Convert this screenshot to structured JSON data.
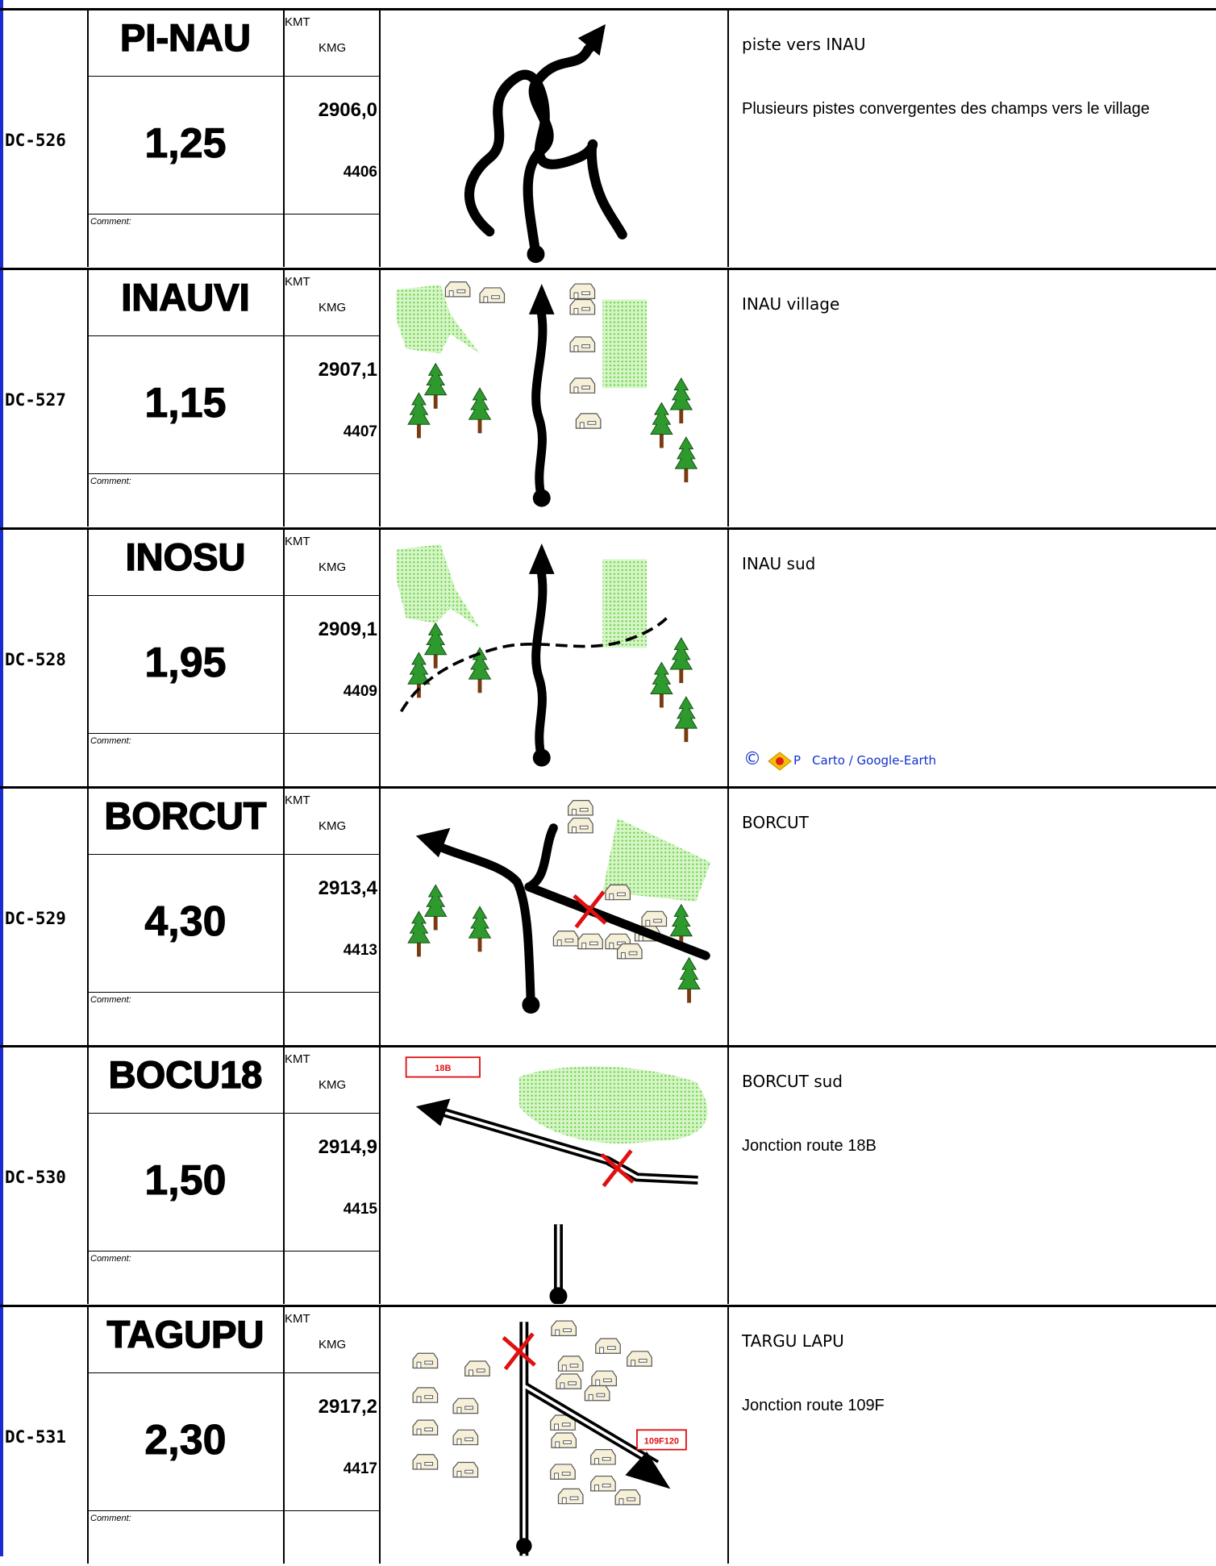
{
  "columns": {
    "kmt": "KMT",
    "kmg": "KMG",
    "comment": "Comment:"
  },
  "rows": [
    {
      "id": "DC-526",
      "name": "PI-NAU",
      "distance": "1,25",
      "kmt": "2906,0",
      "kmg": "4406",
      "notes": [
        "piste vers INAU",
        "Plusieurs pistes convergentes des champs vers le village"
      ]
    },
    {
      "id": "DC-527",
      "name": "INAUVI",
      "distance": "1,15",
      "kmt": "2907,1",
      "kmg": "4407",
      "notes": [
        "INAU village"
      ]
    },
    {
      "id": "DC-528",
      "name": "INOSU",
      "distance": "1,95",
      "kmt": "2909,1",
      "kmg": "4409",
      "notes": [
        "INAU sud"
      ],
      "credit": {
        "symbol": "©",
        "letter": "P",
        "source": "Carto / Google-Earth"
      }
    },
    {
      "id": "DC-529",
      "name": "BORCUT",
      "distance": "4,30",
      "kmt": "2913,4",
      "kmg": "4413",
      "notes": [
        "BORCUT"
      ]
    },
    {
      "id": "DC-530",
      "name": "BOCU18",
      "distance": "1,50",
      "kmt": "2914,9",
      "kmg": "4415",
      "notes": [
        "BORCUT sud",
        "Jonction route 18B"
      ],
      "sign": "18B"
    },
    {
      "id": "DC-531",
      "name": "TAGUPU",
      "distance": "2,30",
      "kmt": "2917,2",
      "kmg": "4417",
      "notes": [
        "TARGU LAPU",
        "Jonction route 109F"
      ],
      "sign": "109F120"
    }
  ]
}
